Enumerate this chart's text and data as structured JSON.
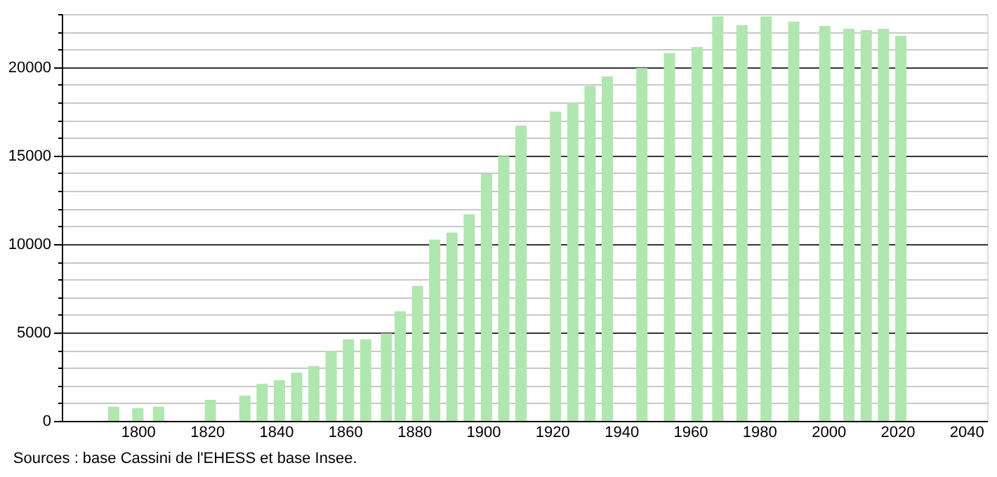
{
  "chart_data": {
    "type": "bar",
    "x": [
      1793,
      1800,
      1806,
      1821,
      1831,
      1836,
      1841,
      1846,
      1851,
      1856,
      1861,
      1866,
      1872,
      1876,
      1881,
      1886,
      1891,
      1896,
      1901,
      1906,
      1911,
      1921,
      1926,
      1931,
      1936,
      1946,
      1954,
      1962,
      1968,
      1975,
      1982,
      1990,
      1999,
      2006,
      2011,
      2016,
      2021
    ],
    "values": [
      800,
      720,
      800,
      1190,
      1430,
      2090,
      2300,
      2730,
      3100,
      3970,
      4610,
      4610,
      4950,
      6200,
      7630,
      10250,
      10650,
      11680,
      13960,
      14970,
      16690,
      17480,
      17960,
      18940,
      19470,
      19950,
      20790,
      21140,
      22860,
      22380,
      22860,
      22570,
      22330,
      22170,
      22090,
      22170,
      21770
    ],
    "color": "#b0e6b0",
    "xlim": [
      1780,
      2044
    ],
    "xticks": [
      1800,
      1820,
      1840,
      1860,
      1880,
      1900,
      1920,
      1940,
      1960,
      1980,
      2000,
      2020,
      2040
    ],
    "ylim": [
      0,
      23000
    ],
    "yticks": [
      0,
      {
        "value": 1000,
        "label": null
      },
      {
        "value": 2000,
        "label": null
      },
      {
        "value": 3000,
        "label": null
      },
      {
        "value": 4000,
        "label": null
      },
      5000,
      {
        "value": 6000,
        "label": null
      },
      {
        "value": 7000,
        "label": null
      },
      {
        "value": 8000,
        "label": null
      },
      {
        "value": 9000,
        "label": null
      },
      10000,
      {
        "value": 11000,
        "label": null
      },
      {
        "value": 12000,
        "label": null
      },
      {
        "value": 13000,
        "label": null
      },
      {
        "value": 14000,
        "label": null
      },
      15000,
      {
        "value": 16000,
        "label": null
      },
      {
        "value": 17000,
        "label": null
      },
      {
        "value": 18000,
        "label": null
      },
      {
        "value": 19000,
        "label": null
      },
      20000,
      {
        "value": 21000,
        "label": null
      },
      {
        "value": 22000,
        "label": null
      },
      {
        "value": 23000,
        "label": null
      }
    ],
    "grid": "y",
    "annotations": [
      "Sources : base Cassini de l'EHESS et base Insee."
    ]
  }
}
